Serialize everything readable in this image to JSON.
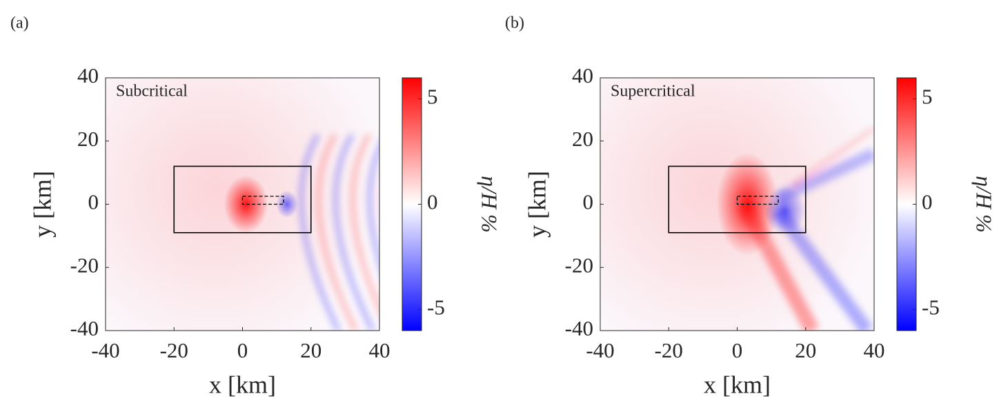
{
  "chart_data": [
    {
      "type": "heatmap",
      "panel_label": "(a)",
      "annotation": "Subcritical",
      "xlabel": "x [km]",
      "ylabel": "y [km]",
      "xlim": [
        -40,
        40
      ],
      "ylim": [
        -40,
        40
      ],
      "xticks": [
        -40,
        -20,
        0,
        20,
        40
      ],
      "yticks": [
        -40,
        -20,
        0,
        20,
        40
      ],
      "colorbar_label": "η/H %",
      "clim": [
        -6,
        6
      ],
      "cticks": [
        -5,
        0,
        5
      ],
      "colormap": [
        "#0000ff",
        "#ffffff",
        "#ff0000"
      ],
      "boxes": [
        {
          "x": [
            -20,
            20
          ],
          "y": [
            -9,
            12
          ],
          "style": "solid"
        },
        {
          "x": [
            0,
            12
          ],
          "y": [
            0,
            2.5
          ],
          "style": "dashed"
        }
      ]
    },
    {
      "type": "heatmap",
      "panel_label": "(b)",
      "annotation": "Supercritical",
      "xlabel": "x [km]",
      "ylabel": "y [km]",
      "xlim": [
        -40,
        40
      ],
      "ylim": [
        -40,
        40
      ],
      "xticks": [
        -40,
        -20,
        0,
        20,
        40
      ],
      "yticks": [
        -40,
        -20,
        0,
        20,
        40
      ],
      "colorbar_label": "η/H %",
      "clim": [
        -6,
        6
      ],
      "cticks": [
        -5,
        0,
        5
      ],
      "colormap": [
        "#0000ff",
        "#ffffff",
        "#ff0000"
      ],
      "boxes": [
        {
          "x": [
            -20,
            20
          ],
          "y": [
            -9,
            12
          ],
          "style": "solid"
        },
        {
          "x": [
            0,
            12
          ],
          "y": [
            0,
            2.5
          ],
          "style": "dashed"
        }
      ]
    }
  ]
}
